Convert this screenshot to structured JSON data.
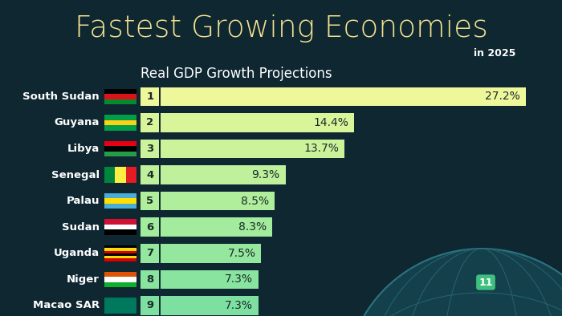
{
  "chart_data": {
    "type": "bar",
    "orientation": "horizontal",
    "title": "Fastest Growing Economies",
    "subtitle": "in 2025",
    "header": "Real GDP Growth Projections",
    "categories": [
      "South Sudan",
      "Guyana",
      "Libya",
      "Senegal",
      "Palau",
      "Sudan",
      "Uganda",
      "Niger",
      "Macao SAR"
    ],
    "ranks": [
      1,
      2,
      3,
      4,
      5,
      6,
      7,
      8,
      9
    ],
    "values": [
      27.2,
      14.4,
      13.7,
      9.3,
      8.5,
      8.3,
      7.5,
      7.3,
      7.3
    ],
    "value_labels": [
      "27.2%",
      "14.4%",
      "13.7%",
      "9.3%",
      "8.5%",
      "8.3%",
      "7.5%",
      "7.3%",
      "7.3%"
    ],
    "colors": [
      "#eff79b",
      "#d9f59a",
      "#cdf39a",
      "#bff09b",
      "#b1ee9c",
      "#a3eb9d",
      "#95e79e",
      "#88e49f",
      "#7de0a0"
    ],
    "xlim": [
      0,
      27.5
    ],
    "data_labels": true,
    "tick_labels": false,
    "grid": false,
    "annotations": [
      "11"
    ]
  }
}
